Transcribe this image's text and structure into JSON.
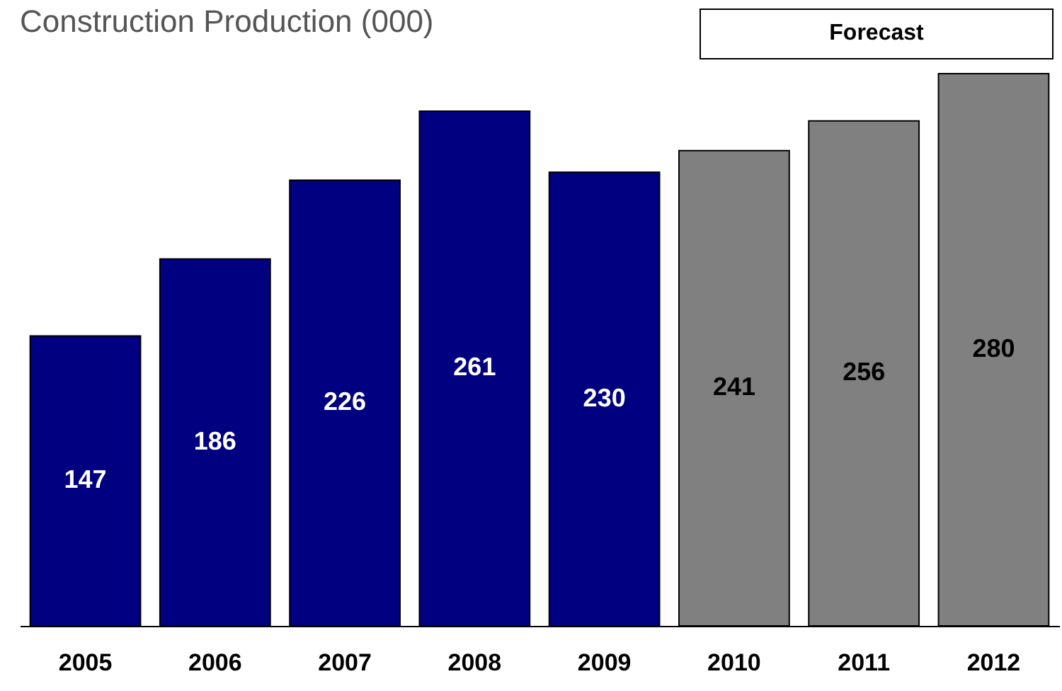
{
  "chart_data": {
    "type": "bar",
    "title": "Construction Production (000)",
    "categories": [
      "2005",
      "2006",
      "2007",
      "2008",
      "2009",
      "2010",
      "2011",
      "2012"
    ],
    "values": [
      147,
      186,
      226,
      261,
      230,
      241,
      256,
      280
    ],
    "colors": [
      "#000080",
      "#000080",
      "#000080",
      "#000080",
      "#000080",
      "#808080",
      "#808080",
      "#808080"
    ],
    "data_labels": true,
    "annotations": [
      "Forecast"
    ]
  }
}
